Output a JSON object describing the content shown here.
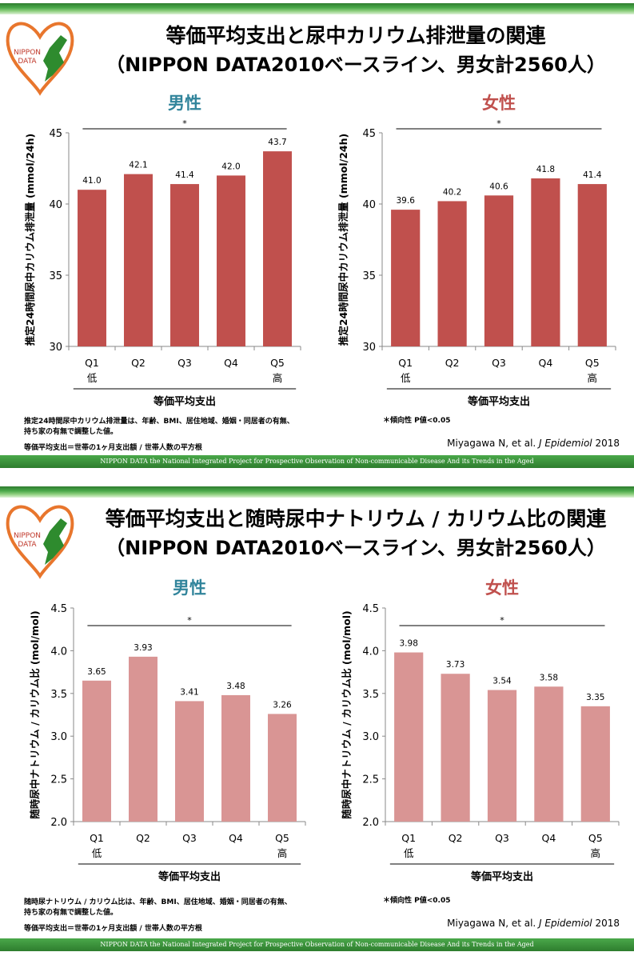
{
  "footer_text": "NIPPON DATA    the National Integrated Project  for Prospective Observation of Non-communicable Disease And its Trends in the Aged",
  "logo": {
    "line1": "NIPPON",
    "line2": "DATA"
  },
  "colors": {
    "bar_potassium": "#c0504d",
    "bar_ratio": "#d99594",
    "male_title": "#31849b",
    "female_title": "#c0504d",
    "footer": "#3a8e3a"
  },
  "slide1": {
    "title_line1": "等価平均支出と尿中カリウム排泄量の関連",
    "title_line2": "（NIPPON DATA2010ベースライン、男女計2560人）",
    "note_line1": "推定24時間尿中カリウム排泄量は、年齢、BMI、居住地域、婚姻・同居者の有無、",
    "note_line2": "持ち家の有無で調整した値。",
    "note_line3": "等価平均支出＝世帯の1ヶ月支出額 / 世帯人数の平方根",
    "p_note": "＊傾向性 P値<0.05",
    "cite_prefix": "Miyagawa N, et al. ",
    "cite_journal": "J Epidemiol",
    "cite_year": " 2018"
  },
  "slide2": {
    "title_line1": "等価平均支出と随時尿中ナトリウム / カリウム比の関連",
    "title_line2": "（NIPPON DATA2010ベースライン、男女計2560人）",
    "note_line1": "随時尿ナトリウム / カリウム比は、年齢、BMI、居住地域、婚姻・同居者の有無、",
    "note_line2": "持ち家の有無で調整した値。",
    "note_line3": "等価平均支出＝世帯の1ヶ月支出額 / 世帯人数の平方根",
    "p_note": "＊傾向性 P値<0.05",
    "cite_prefix": "Miyagawa N, et al. ",
    "cite_journal": "J Epidemiol",
    "cite_year": " 2018"
  },
  "chart_data": [
    {
      "type": "bar",
      "title": "男性",
      "categories": [
        "Q1",
        "Q2",
        "Q3",
        "Q4",
        "Q5"
      ],
      "category_sublabels": [
        "低",
        "",
        "",
        "",
        "高"
      ],
      "values": [
        41.0,
        42.1,
        41.4,
        42.0,
        43.7
      ],
      "value_labels": [
        "41.0",
        "42.1",
        "41.4",
        "42.0",
        "43.7"
      ],
      "xlabel": "等価平均支出",
      "ylabel": "推定24時間尿中カリウム排泄量 (mmol/24h)",
      "ylim": [
        30,
        45
      ],
      "yticks": [
        "30",
        "35",
        "40",
        "45"
      ],
      "significance": "*",
      "grid": false
    },
    {
      "type": "bar",
      "title": "女性",
      "categories": [
        "Q1",
        "Q2",
        "Q3",
        "Q4",
        "Q5"
      ],
      "category_sublabels": [
        "低",
        "",
        "",
        "",
        "高"
      ],
      "values": [
        39.6,
        40.2,
        40.6,
        41.8,
        41.4
      ],
      "value_labels": [
        "39.6",
        "40.2",
        "40.6",
        "41.8",
        "41.4"
      ],
      "xlabel": "等価平均支出",
      "ylabel": "推定24時間尿中カリウム排泄量 (mmol/24h)",
      "ylim": [
        30,
        45
      ],
      "yticks": [
        "30",
        "35",
        "40",
        "45"
      ],
      "significance": "*",
      "grid": false
    },
    {
      "type": "bar",
      "title": "男性",
      "categories": [
        "Q1",
        "Q2",
        "Q3",
        "Q4",
        "Q5"
      ],
      "category_sublabels": [
        "低",
        "",
        "",
        "",
        "高"
      ],
      "values": [
        3.65,
        3.93,
        3.41,
        3.48,
        3.26
      ],
      "value_labels": [
        "3.65",
        "3.93",
        "3.41",
        "3.48",
        "3.26"
      ],
      "xlabel": "等価平均支出",
      "ylabel": "随時尿中ナトリウム / カリウム比 (mol/mol)",
      "ylim": [
        2.0,
        4.5
      ],
      "yticks": [
        "2.0",
        "2.5",
        "3.0",
        "3.5",
        "4.0",
        "4.5"
      ],
      "significance": "*",
      "grid": false
    },
    {
      "type": "bar",
      "title": "女性",
      "categories": [
        "Q1",
        "Q2",
        "Q3",
        "Q4",
        "Q5"
      ],
      "category_sublabels": [
        "低",
        "",
        "",
        "",
        "高"
      ],
      "values": [
        3.98,
        3.73,
        3.54,
        3.58,
        3.35
      ],
      "value_labels": [
        "3.98",
        "3.73",
        "3.54",
        "3.58",
        "3.35"
      ],
      "xlabel": "等価平均支出",
      "ylabel": "随時尿中ナトリウム / カリウム比 (mol/mol)",
      "ylim": [
        2.0,
        4.5
      ],
      "yticks": [
        "2.0",
        "2.5",
        "3.0",
        "3.5",
        "4.0",
        "4.5"
      ],
      "significance": "*",
      "grid": false
    }
  ]
}
